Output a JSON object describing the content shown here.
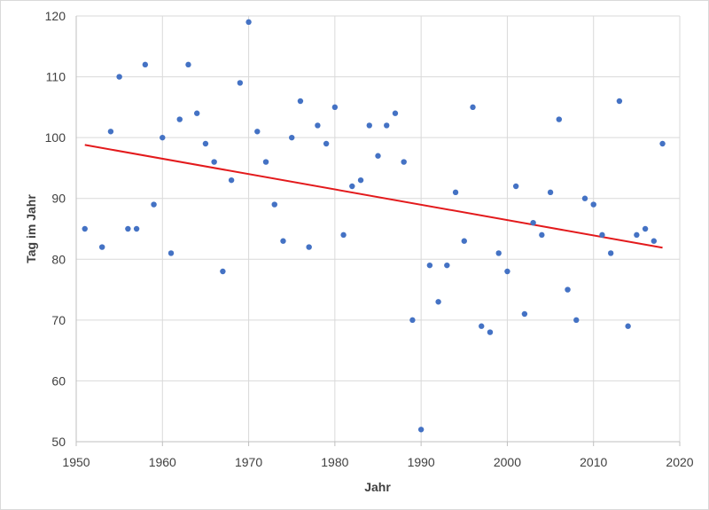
{
  "chart_data": {
    "type": "scatter",
    "title": "",
    "xlabel": "Jahr",
    "ylabel": "Tag im Jahr",
    "xlim": [
      1950,
      2020
    ],
    "ylim": [
      50,
      120
    ],
    "x_ticks": [
      1950,
      1960,
      1970,
      1980,
      1990,
      2000,
      2010,
      2020
    ],
    "y_ticks": [
      50,
      60,
      70,
      80,
      90,
      100,
      110,
      120
    ],
    "grid": "horizontal",
    "legend": "none",
    "colors": {
      "points": "#4472C4",
      "trendline": "#E31A1C",
      "grid": "#D9D9D9",
      "axis": "#BFBFBF"
    },
    "series": [
      {
        "points": [
          [
            1951,
            85
          ],
          [
            1953,
            82
          ],
          [
            1954,
            101
          ],
          [
            1955,
            110
          ],
          [
            1956,
            85
          ],
          [
            1957,
            85
          ],
          [
            1958,
            112
          ],
          [
            1959,
            89
          ],
          [
            1960,
            100
          ],
          [
            1961,
            81
          ],
          [
            1962,
            103
          ],
          [
            1963,
            112
          ],
          [
            1964,
            104
          ],
          [
            1965,
            99
          ],
          [
            1966,
            96
          ],
          [
            1967,
            78
          ],
          [
            1968,
            93
          ],
          [
            1969,
            109
          ],
          [
            1970,
            119
          ],
          [
            1971,
            101
          ],
          [
            1972,
            96
          ],
          [
            1973,
            89
          ],
          [
            1974,
            83
          ],
          [
            1975,
            100
          ],
          [
            1976,
            106
          ],
          [
            1977,
            82
          ],
          [
            1978,
            102
          ],
          [
            1979,
            99
          ],
          [
            1980,
            105
          ],
          [
            1981,
            84
          ],
          [
            1982,
            92
          ],
          [
            1983,
            93
          ],
          [
            1984,
            102
          ],
          [
            1985,
            97
          ],
          [
            1986,
            102
          ],
          [
            1987,
            104
          ],
          [
            1988,
            96
          ],
          [
            1989,
            70
          ],
          [
            1990,
            52
          ],
          [
            1991,
            79
          ],
          [
            1992,
            73
          ],
          [
            1993,
            79
          ],
          [
            1994,
            91
          ],
          [
            1995,
            83
          ],
          [
            1996,
            105
          ],
          [
            1997,
            69
          ],
          [
            1998,
            68
          ],
          [
            1999,
            81
          ],
          [
            2000,
            78
          ],
          [
            2001,
            92
          ],
          [
            2002,
            71
          ],
          [
            2003,
            86
          ],
          [
            2004,
            84
          ],
          [
            2005,
            91
          ],
          [
            2006,
            103
          ],
          [
            2007,
            75
          ],
          [
            2008,
            70
          ],
          [
            2009,
            90
          ],
          [
            2010,
            89
          ],
          [
            2011,
            84
          ],
          [
            2012,
            81
          ],
          [
            2013,
            106
          ],
          [
            2014,
            69
          ],
          [
            2015,
            84
          ],
          [
            2016,
            85
          ],
          [
            2017,
            83
          ],
          [
            2018,
            99
          ]
        ]
      }
    ],
    "trendline": {
      "type": "linear",
      "x": [
        1951,
        2018
      ],
      "y": [
        98.8,
        81.9
      ]
    }
  }
}
